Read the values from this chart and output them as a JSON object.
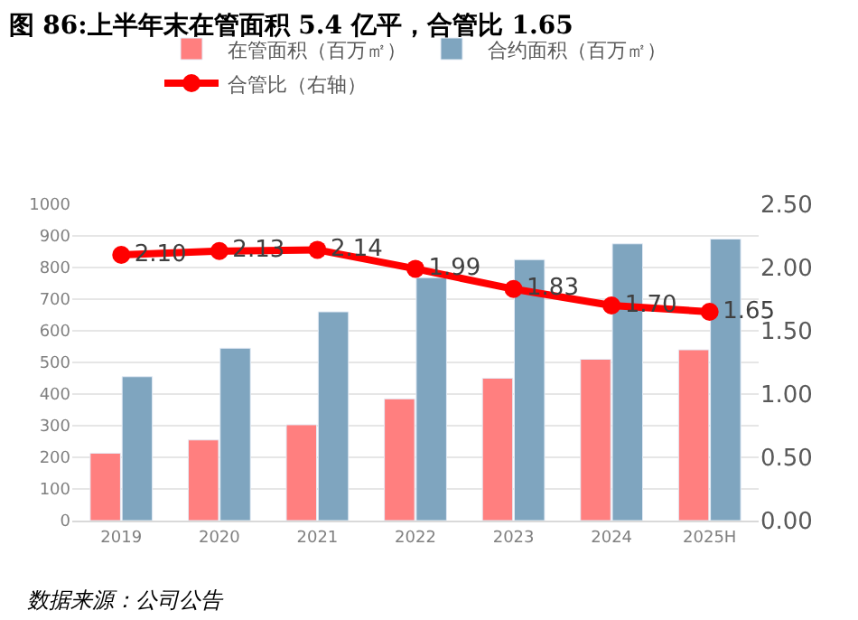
{
  "chart_data": {
    "type": "bar",
    "title": "图 86:上半年末在管面积 5.4 亿平，合管比 1.65",
    "categories": [
      "2019",
      "2020",
      "2021",
      "2022",
      "2023",
      "2024",
      "2025H"
    ],
    "series": [
      {
        "name": "在管面积（百万㎡）",
        "color": "#ff7f7f",
        "values": [
          213,
          255,
          303,
          385,
          450,
          510,
          540
        ]
      },
      {
        "name": "合约面积（百万㎡）",
        "color": "#7fa5bf",
        "values": [
          455,
          545,
          660,
          768,
          825,
          875,
          890
        ]
      },
      {
        "name": "合管比（右轴）",
        "type": "line",
        "axis": "y2",
        "color": "#ff0000",
        "marker": "circle",
        "values": [
          2.1,
          2.13,
          2.14,
          1.99,
          1.83,
          1.7,
          1.65
        ],
        "value_labels": [
          "2.10",
          "2.13",
          "2.14",
          "1.99",
          "1.83",
          "1.70",
          "1.65"
        ]
      }
    ],
    "ylim": [
      0,
      1000
    ],
    "yticks": [
      0,
      100,
      200,
      300,
      400,
      500,
      600,
      700,
      800,
      900,
      1000
    ],
    "y2lim": [
      0,
      2.5
    ],
    "y2ticks": [
      {
        "value": 0,
        "label": "0.00"
      },
      {
        "value": 0.5,
        "label": "0.50"
      },
      {
        "value": 1,
        "label": "1.00"
      },
      {
        "value": 1.5,
        "label": "1.50"
      },
      {
        "value": 2,
        "label": "2.00"
      },
      {
        "value": 2.5,
        "label": "2.50"
      }
    ],
    "grid": "y",
    "legend": "top",
    "annotations": [
      "数据来源：公司公告"
    ]
  }
}
